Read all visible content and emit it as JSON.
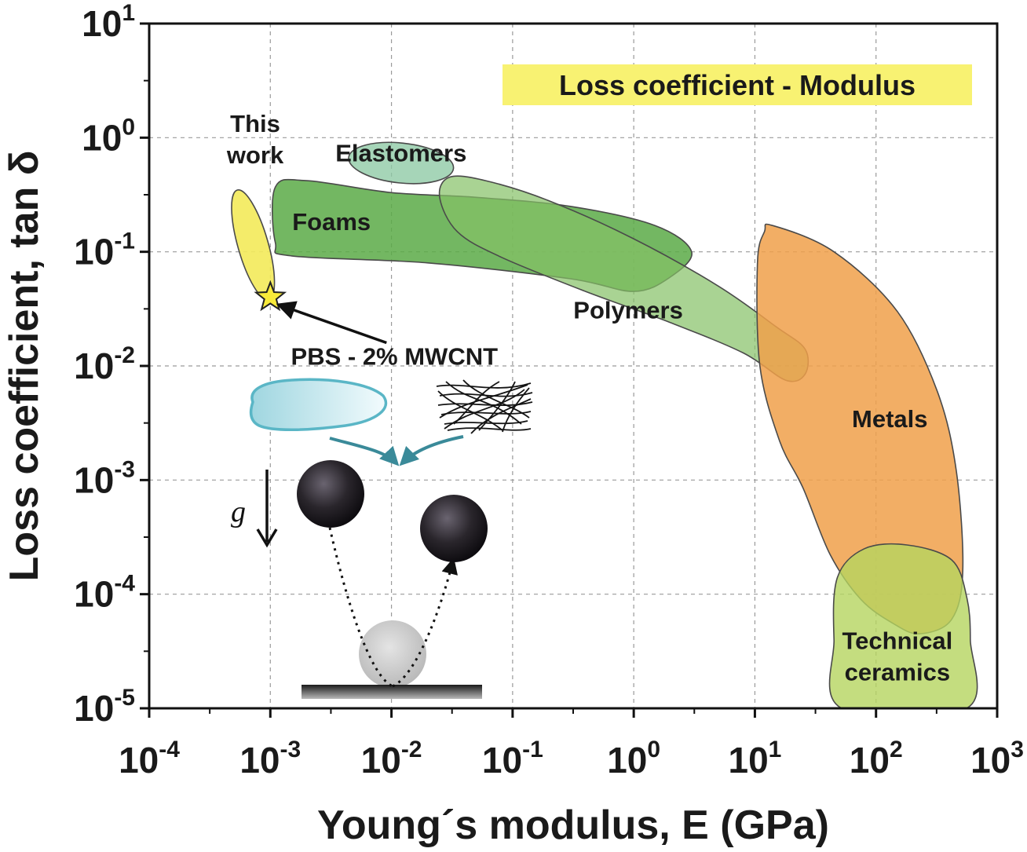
{
  "chart_data": {
    "type": "scatter",
    "title": "Loss coefficient - Modulus",
    "xlabel": "Young´s modulus, E (GPa)",
    "ylabel": "Loss coefficient, tan δ",
    "x_scale": "log",
    "y_scale": "log",
    "xlim": [
      0.0001,
      1000
    ],
    "ylim": [
      1e-05,
      10
    ],
    "grid": true,
    "x_ticks": [
      {
        "base": "10",
        "exp": "-4",
        "value": 0.0001
      },
      {
        "base": "10",
        "exp": "-3",
        "value": 0.001
      },
      {
        "base": "10",
        "exp": "-2",
        "value": 0.01
      },
      {
        "base": "10",
        "exp": "-1",
        "value": 0.1
      },
      {
        "base": "10",
        "exp": "0",
        "value": 1
      },
      {
        "base": "10",
        "exp": "1",
        "value": 10
      },
      {
        "base": "10",
        "exp": "2",
        "value": 100
      },
      {
        "base": "10",
        "exp": "3",
        "value": 1000
      }
    ],
    "y_ticks": [
      {
        "base": "10",
        "exp": "-5",
        "value": 1e-05
      },
      {
        "base": "10",
        "exp": "-4",
        "value": 0.0001
      },
      {
        "base": "10",
        "exp": "-3",
        "value": 0.001
      },
      {
        "base": "10",
        "exp": "-2",
        "value": 0.01
      },
      {
        "base": "10",
        "exp": "-1",
        "value": 0.1
      },
      {
        "base": "10",
        "exp": "0",
        "value": 1
      },
      {
        "base": "10",
        "exp": "1",
        "value": 10
      }
    ],
    "regions": [
      {
        "name": "Elastomers",
        "shape": "ellipse",
        "center": [
          0.012,
          0.6
        ],
        "spans_decades": [
          0.87,
          0.35
        ],
        "rotation_deg": 6,
        "color": "#8dc9a4",
        "opacity": 0.78
      },
      {
        "name": "Foams",
        "shape": "polygon",
        "points": [
          [
            0.0011,
            0.37
          ],
          [
            0.0011,
            0.12
          ],
          [
            0.0015,
            0.092
          ],
          [
            0.02,
            0.08
          ],
          [
            0.3,
            0.058
          ],
          [
            1.0,
            0.045
          ],
          [
            2.0,
            0.06
          ],
          [
            3.0,
            0.1
          ],
          [
            1.5,
            0.17
          ],
          [
            0.3,
            0.25
          ],
          [
            0.05,
            0.3
          ],
          [
            0.01,
            0.33
          ],
          [
            0.002,
            0.42
          ]
        ],
        "color": "#5aaa46",
        "opacity": 0.85
      },
      {
        "name": "Polymers",
        "shape": "polygon",
        "points": [
          [
            0.03,
            0.45
          ],
          [
            0.025,
            0.3
          ],
          [
            0.035,
            0.15
          ],
          [
            0.08,
            0.09
          ],
          [
            0.4,
            0.045
          ],
          [
            2.0,
            0.024
          ],
          [
            8.0,
            0.013
          ],
          [
            18.0,
            0.0075
          ],
          [
            26.0,
            0.0085
          ],
          [
            26.0,
            0.014
          ],
          [
            15.0,
            0.022
          ],
          [
            5.0,
            0.05
          ],
          [
            1.0,
            0.13
          ],
          [
            0.2,
            0.28
          ],
          [
            0.06,
            0.42
          ]
        ],
        "color": "#85c065",
        "opacity": 0.7
      },
      {
        "name": "Metals",
        "shape": "polygon",
        "points": [
          [
            14.0,
            0.17
          ],
          [
            12.0,
            0.15
          ],
          [
            10.5,
            0.08
          ],
          [
            11.0,
            0.01
          ],
          [
            16.0,
            0.0022
          ],
          [
            25.0,
            0.00085
          ],
          [
            42.0,
            0.00022
          ],
          [
            75.0,
            9e-05
          ],
          [
            140.0,
            5.5e-05
          ],
          [
            230.0,
            4.5e-05
          ],
          [
            420.0,
            6e-05
          ],
          [
            520.0,
            0.00016
          ],
          [
            460.0,
            0.0012
          ],
          [
            320.0,
            0.006
          ],
          [
            150.0,
            0.03
          ],
          [
            45.0,
            0.1
          ]
        ],
        "color": "#f0a04a",
        "opacity": 0.85
      },
      {
        "name": "Technical\nceramics",
        "shape": "polygon",
        "points": [
          [
            52.0,
            1e-05
          ],
          [
            45.0,
            4e-05
          ],
          [
            48.0,
            0.00014
          ],
          [
            80.0,
            0.00025
          ],
          [
            180.0,
            0.00027
          ],
          [
            420.0,
            0.0002
          ],
          [
            560.0,
            9.5e-05
          ],
          [
            600.0,
            4e-05
          ],
          [
            560.0,
            1e-05
          ]
        ],
        "color": "#b5d55f",
        "opacity": 0.8
      },
      {
        "name": "This\nwork",
        "shape": "ellipse",
        "center": [
          0.00072,
          0.115
        ],
        "spans_decades": [
          0.25,
          1.0
        ],
        "rotation_deg": -16,
        "color": "#f3ea5a",
        "opacity": 0.9
      }
    ],
    "points": [
      {
        "name": "PBS - 2% MWCNT",
        "x": 0.001,
        "y": 0.04,
        "marker": "star",
        "color": "#f8ea3a"
      }
    ],
    "annotations": [
      {
        "text": "PBS - 2% MWCNT",
        "target": [
          0.001,
          0.04
        ]
      }
    ],
    "inset": {
      "symbols": [
        "g⃗"
      ],
      "description": "Rebound ball illustration"
    }
  }
}
